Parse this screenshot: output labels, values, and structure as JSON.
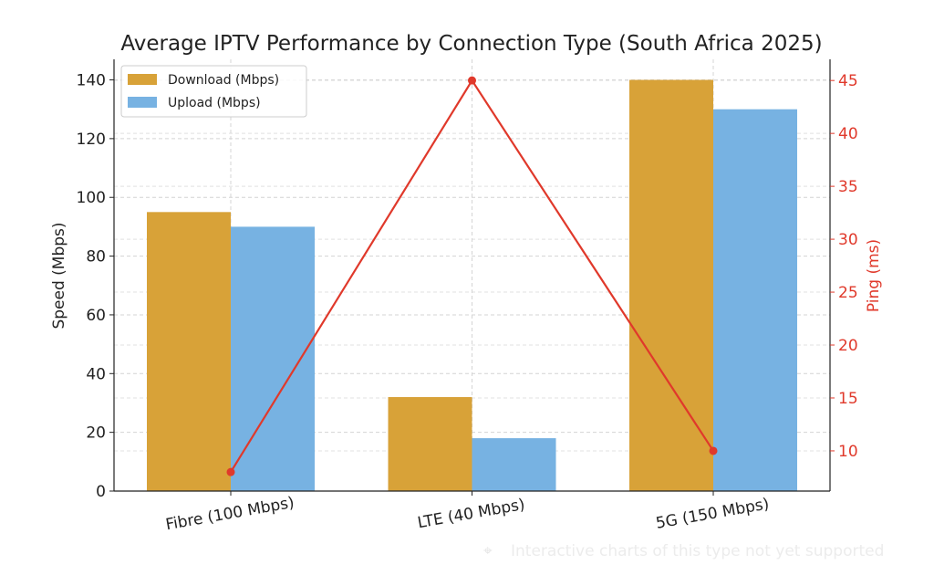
{
  "chart_data": {
    "type": "bar",
    "title": "Average IPTV Performance by Connection Type (South Africa 2025)",
    "categories": [
      "Fibre (100 Mbps)",
      "LTE (40 Mbps)",
      "5G (150 Mbps)"
    ],
    "series": [
      {
        "name": "Download (Mbps)",
        "type": "bar",
        "axis": "left",
        "color": "#D8A238",
        "values": [
          95,
          32,
          140
        ]
      },
      {
        "name": "Upload (Mbps)",
        "type": "bar",
        "axis": "left",
        "color": "#77B2E2",
        "values": [
          90,
          18,
          130
        ]
      },
      {
        "name": "Ping (ms)",
        "type": "line",
        "axis": "right",
        "color": "#E0392B",
        "values": [
          8,
          45,
          10
        ]
      }
    ],
    "ylabel": "Speed (Mbps)",
    "y2label": "Ping (ms)",
    "ylim": [
      0,
      147
    ],
    "y2lim": [
      6.2,
      47
    ],
    "yticks": [
      0,
      20,
      40,
      60,
      80,
      100,
      120,
      140
    ],
    "y2ticks": [
      10,
      15,
      20,
      25,
      30,
      35,
      40,
      45
    ],
    "grid": true,
    "legend": "top-left",
    "legend_entries": [
      "Download (Mbps)",
      "Upload (Mbps)"
    ]
  },
  "notice": "Interactive charts of this type not yet supported"
}
